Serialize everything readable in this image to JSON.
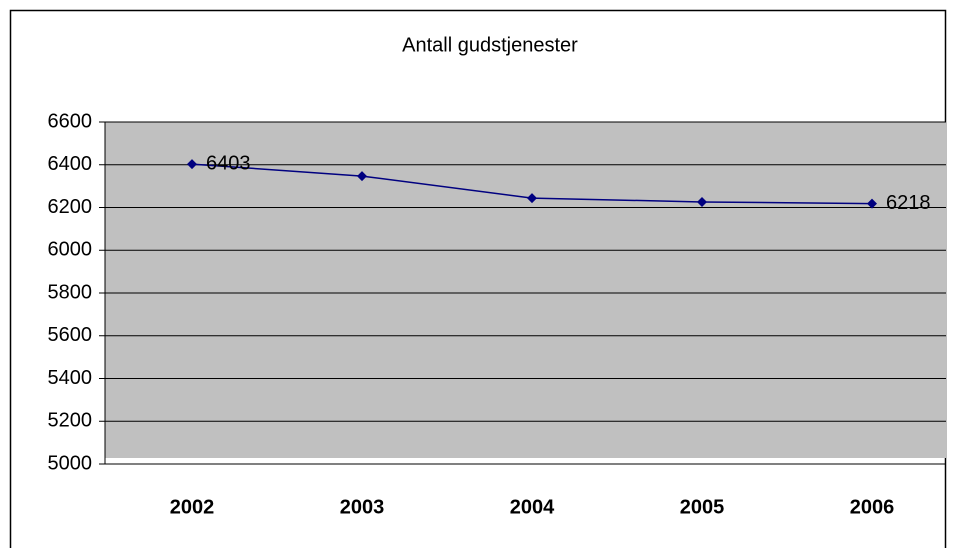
{
  "chart_data": {
    "type": "line",
    "title": "Antall gudstjenester",
    "categories": [
      "2002",
      "2003",
      "2004",
      "2005",
      "2006"
    ],
    "series": [
      {
        "name": "Antall gudstjenester",
        "color": "#000080",
        "values": [
          6403,
          6347,
          6244,
          6226,
          6218
        ]
      }
    ],
    "ylim": [
      5000,
      6600
    ],
    "yticks": [
      5000,
      5200,
      5400,
      5600,
      5800,
      6000,
      6200,
      6400,
      6600
    ],
    "grid": true,
    "background": "#c0c0c0",
    "legend": false
  }
}
